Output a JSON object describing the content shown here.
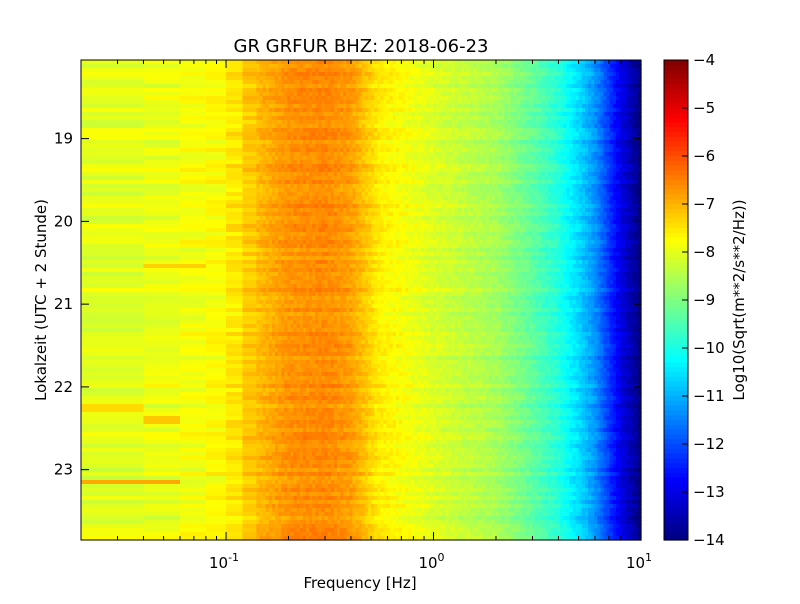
{
  "chart_data": {
    "type": "heatmap",
    "title": "GR GRFUR BHZ: 2018-06-23",
    "xlabel": "Frequency [Hz]",
    "ylabel": "Lokalzeit (UTC + 2 Stunde)",
    "x_scale": "log",
    "xlim": [
      0.02,
      10
    ],
    "x_ticks": [
      {
        "value": 0.1,
        "base": "10",
        "exp": "-1"
      },
      {
        "value": 1,
        "base": "10",
        "exp": "0"
      },
      {
        "value": 10,
        "base": "10",
        "exp": "1"
      }
    ],
    "ylim": [
      18.05,
      23.85
    ],
    "y_inverted": true,
    "y_ticks": [
      19,
      20,
      21,
      22,
      23
    ],
    "colorbar": {
      "label": "Log10(Sqrt(m**2/s**2/Hz))",
      "range": [
        -14,
        -4
      ],
      "ticks": [
        -4,
        -5,
        -6,
        -7,
        -8,
        -9,
        -10,
        -11,
        -12,
        -13,
        -14
      ],
      "colormap": "jet"
    },
    "spectrum_profile": {
      "description_values": "typical log10 amplitude per frequency",
      "freq_hz": [
        0.02,
        0.04,
        0.06,
        0.1,
        0.14,
        0.2,
        0.3,
        0.4,
        0.55,
        1.0,
        2.0,
        3.0,
        4.0,
        5.0,
        6.0,
        7.0,
        8.0,
        10.0
      ],
      "level": [
        -8.1,
        -8.0,
        -7.9,
        -7.7,
        -7.1,
        -6.7,
        -6.6,
        -6.8,
        -7.6,
        -8.1,
        -8.6,
        -9.3,
        -9.9,
        -10.6,
        -11.3,
        -12.2,
        -13.0,
        -14.0
      ]
    },
    "notable_features": [
      {
        "time": 20.55,
        "freq_range": [
          0.04,
          0.08
        ],
        "level": -7.3
      },
      {
        "time": 22.25,
        "freq_range": [
          0.02,
          0.04
        ],
        "level": -7.4
      },
      {
        "time": 22.4,
        "freq_range": [
          0.04,
          0.06
        ],
        "level": -7.2
      },
      {
        "time": 23.15,
        "freq_range": [
          0.02,
          0.06
        ],
        "level": -6.9
      }
    ]
  }
}
